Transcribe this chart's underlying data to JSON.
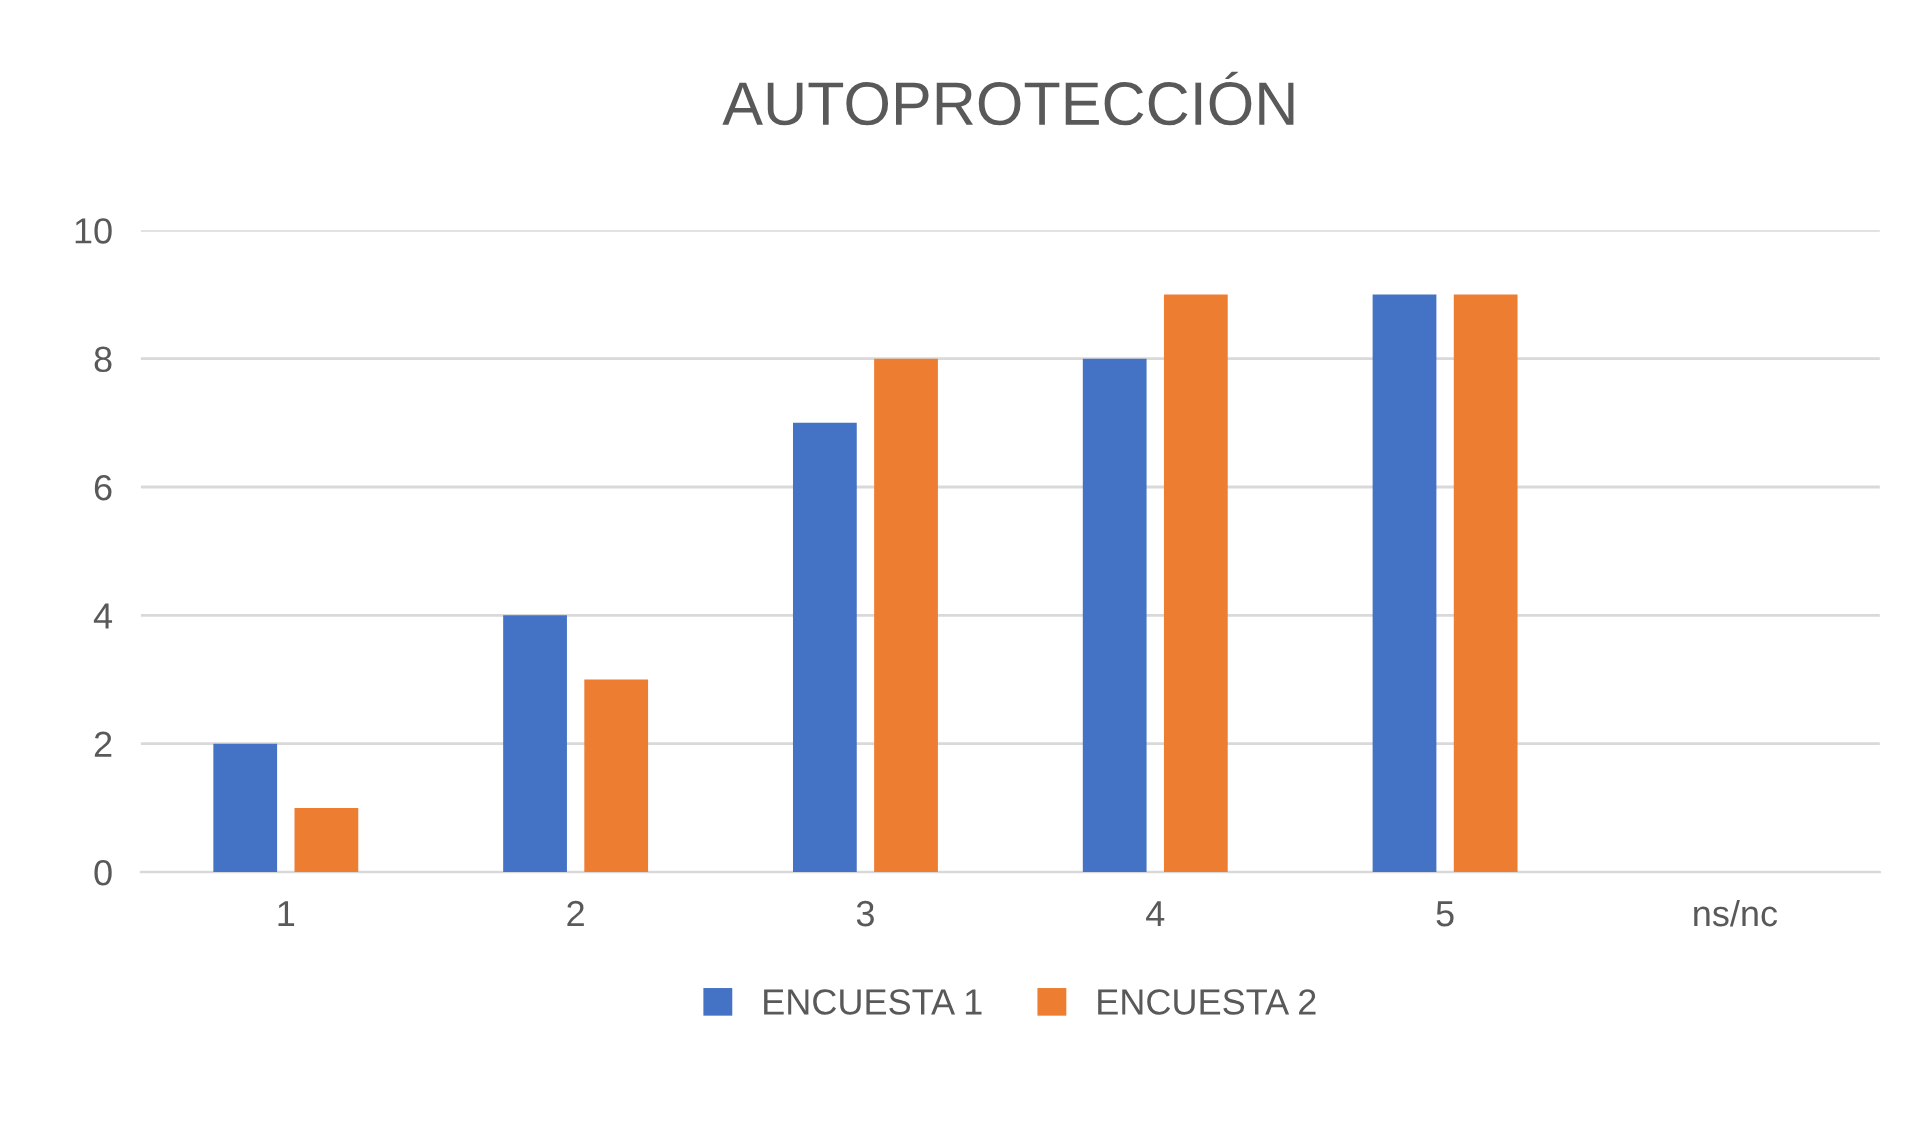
{
  "chart_data": {
    "type": "bar",
    "title": "AUTOPROTECCIÓN",
    "categories": [
      "1",
      "2",
      "3",
      "4",
      "5",
      "ns/nc"
    ],
    "series": [
      {
        "name": "ENCUESTA 1",
        "color": "#4472c4",
        "values": [
          2,
          4,
          7,
          8,
          9,
          0
        ]
      },
      {
        "name": "ENCUESTA 2",
        "color": "#ed7d31",
        "values": [
          1,
          3,
          8,
          9,
          9,
          0
        ]
      }
    ],
    "ylim": [
      0,
      10
    ],
    "yticks": [
      0,
      2,
      4,
      6,
      8,
      10
    ],
    "grid": "y",
    "legend": "bottom"
  }
}
